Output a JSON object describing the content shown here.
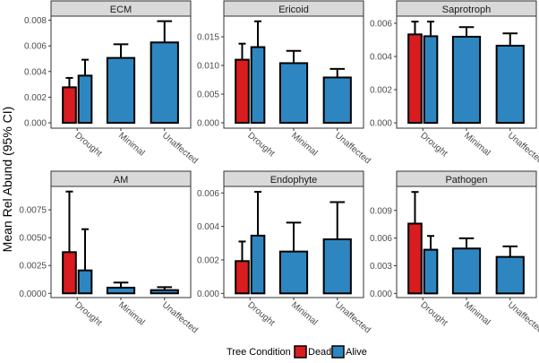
{
  "chart_data": {
    "type": "bar",
    "ylabel": "Mean Rel Abund (95% CI)",
    "categories": [
      "Drought",
      "Minimal",
      "Unaffected"
    ],
    "legend": {
      "title": "Tree Condition",
      "position": "bottom",
      "entries": [
        {
          "name": "Dead",
          "color": "#d91c1f"
        },
        {
          "name": "Alive",
          "color": "#2e86c1"
        }
      ]
    },
    "panels": [
      {
        "title": "ECM",
        "ylim": [
          -0.00042,
          0.00832
        ],
        "ticks": [
          "0.000",
          "0.002",
          "0.004",
          "0.006",
          "0.008"
        ],
        "tick_values": [
          0,
          0.002,
          0.004,
          0.006,
          0.008
        ],
        "bars": [
          {
            "category": "Drought",
            "condition": "Dead",
            "value": 0.00277,
            "upper": 0.0035
          },
          {
            "category": "Drought",
            "condition": "Alive",
            "value": 0.00368,
            "upper": 0.00492
          },
          {
            "category": "Minimal",
            "condition": "Alive",
            "value": 0.00506,
            "upper": 0.00613
          },
          {
            "category": "Unaffected",
            "condition": "Alive",
            "value": 0.00627,
            "upper": 0.00793
          }
        ]
      },
      {
        "title": "Ericoid",
        "ylim": [
          -0.00094,
          0.0186
        ],
        "ticks": [
          "0.000",
          "0.005",
          "0.010",
          "0.015"
        ],
        "tick_values": [
          0,
          0.005,
          0.01,
          0.015
        ],
        "bars": [
          {
            "category": "Drought",
            "condition": "Dead",
            "value": 0.011,
            "upper": 0.0138
          },
          {
            "category": "Drought",
            "condition": "Alive",
            "value": 0.0132,
            "upper": 0.0177
          },
          {
            "category": "Minimal",
            "condition": "Alive",
            "value": 0.0104,
            "upper": 0.01255
          },
          {
            "category": "Unaffected",
            "condition": "Alive",
            "value": 0.0079,
            "upper": 0.0094
          }
        ]
      },
      {
        "title": "Saprotroph",
        "ylim": [
          -0.00032,
          0.00643
        ],
        "ticks": [
          "0.000",
          "0.002",
          "0.004",
          "0.006"
        ],
        "tick_values": [
          0,
          0.002,
          0.004,
          0.006
        ],
        "bars": [
          {
            "category": "Drought",
            "condition": "Dead",
            "value": 0.00533,
            "upper": 0.0061
          },
          {
            "category": "Drought",
            "condition": "Alive",
            "value": 0.00522,
            "upper": 0.0061
          },
          {
            "category": "Minimal",
            "condition": "Alive",
            "value": 0.00519,
            "upper": 0.00577
          },
          {
            "category": "Unaffected",
            "condition": "Alive",
            "value": 0.00465,
            "upper": 0.00539
          }
        ]
      },
      {
        "title": "AM",
        "ylim": [
          -0.00038,
          0.0096
        ],
        "ticks": [
          "0.0000",
          "0.0025",
          "0.0050",
          "0.0075"
        ],
        "tick_values": [
          0,
          0.0025,
          0.005,
          0.0075
        ],
        "bars": [
          {
            "category": "Drought",
            "condition": "Dead",
            "value": 0.0037,
            "upper": 0.00914
          },
          {
            "category": "Drought",
            "condition": "Alive",
            "value": 0.00206,
            "upper": 0.00576
          },
          {
            "category": "Minimal",
            "condition": "Alive",
            "value": 0.00051,
            "upper": 0.00097
          },
          {
            "category": "Unaffected",
            "condition": "Alive",
            "value": 0.00029,
            "upper": 0.00056
          }
        ]
      },
      {
        "title": "Endophyte",
        "ylim": [
          -0.00025,
          0.00639
        ],
        "ticks": [
          "0.000",
          "0.002",
          "0.004",
          "0.006"
        ],
        "tick_values": [
          0,
          0.002,
          0.004,
          0.006
        ],
        "bars": [
          {
            "category": "Drought",
            "condition": "Dead",
            "value": 0.00193,
            "upper": 0.0031
          },
          {
            "category": "Drought",
            "condition": "Alive",
            "value": 0.00345,
            "upper": 0.00607
          },
          {
            "category": "Minimal",
            "condition": "Alive",
            "value": 0.0025,
            "upper": 0.00423
          },
          {
            "category": "Unaffected",
            "condition": "Alive",
            "value": 0.00323,
            "upper": 0.00545
          }
        ]
      },
      {
        "title": "Pathogen",
        "ylim": [
          -0.00045,
          0.0116
        ],
        "ticks": [
          "0.000",
          "0.003",
          "0.006",
          "0.009"
        ],
        "tick_values": [
          0,
          0.003,
          0.006,
          0.009
        ],
        "bars": [
          {
            "category": "Drought",
            "condition": "Dead",
            "value": 0.00757,
            "upper": 0.011
          },
          {
            "category": "Drought",
            "condition": "Alive",
            "value": 0.00474,
            "upper": 0.00623
          },
          {
            "category": "Minimal",
            "condition": "Alive",
            "value": 0.00487,
            "upper": 0.00597
          },
          {
            "category": "Unaffected",
            "condition": "Alive",
            "value": 0.00396,
            "upper": 0.0051
          }
        ]
      }
    ]
  }
}
